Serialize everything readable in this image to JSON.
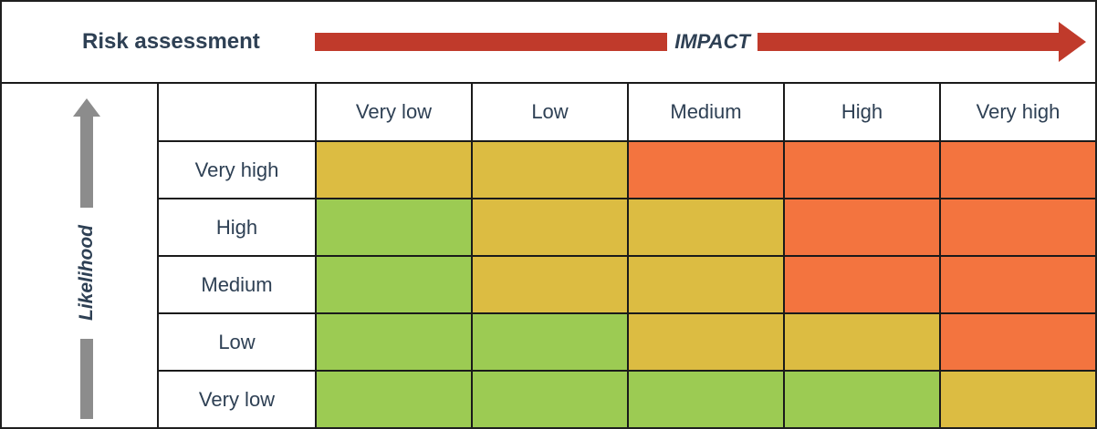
{
  "header": {
    "title": "Risk assessment",
    "impact_label": "IMPACT"
  },
  "axis": {
    "likelihood_label": "Likelihood"
  },
  "colors": {
    "green": "#9ccb53",
    "yellow": "#dcbc42",
    "orange": "#f3743f",
    "arrow_red": "#c03a2b",
    "text_navy": "#2e4054",
    "arrow_gray": "#8c8c8c",
    "grid_line": "#1a1a1a"
  },
  "chart_data": {
    "type": "heatmap",
    "title": "Risk assessment",
    "xlabel": "IMPACT",
    "ylabel": "Likelihood",
    "x_categories": [
      "Very low",
      "Low",
      "Medium",
      "High",
      "Very high"
    ],
    "y_categories_top_to_bottom": [
      "Very high",
      "High",
      "Medium",
      "Low",
      "Very low"
    ],
    "legend": "none",
    "grid": true,
    "rows": [
      {
        "likelihood": "Very high",
        "cells": [
          "yellow",
          "yellow",
          "orange",
          "orange",
          "orange"
        ]
      },
      {
        "likelihood": "High",
        "cells": [
          "green",
          "yellow",
          "yellow",
          "orange",
          "orange"
        ]
      },
      {
        "likelihood": "Medium",
        "cells": [
          "green",
          "yellow",
          "yellow",
          "orange",
          "orange"
        ]
      },
      {
        "likelihood": "Low",
        "cells": [
          "green",
          "green",
          "yellow",
          "yellow",
          "orange"
        ]
      },
      {
        "likelihood": "Very low",
        "cells": [
          "green",
          "green",
          "green",
          "green",
          "yellow"
        ]
      }
    ]
  }
}
